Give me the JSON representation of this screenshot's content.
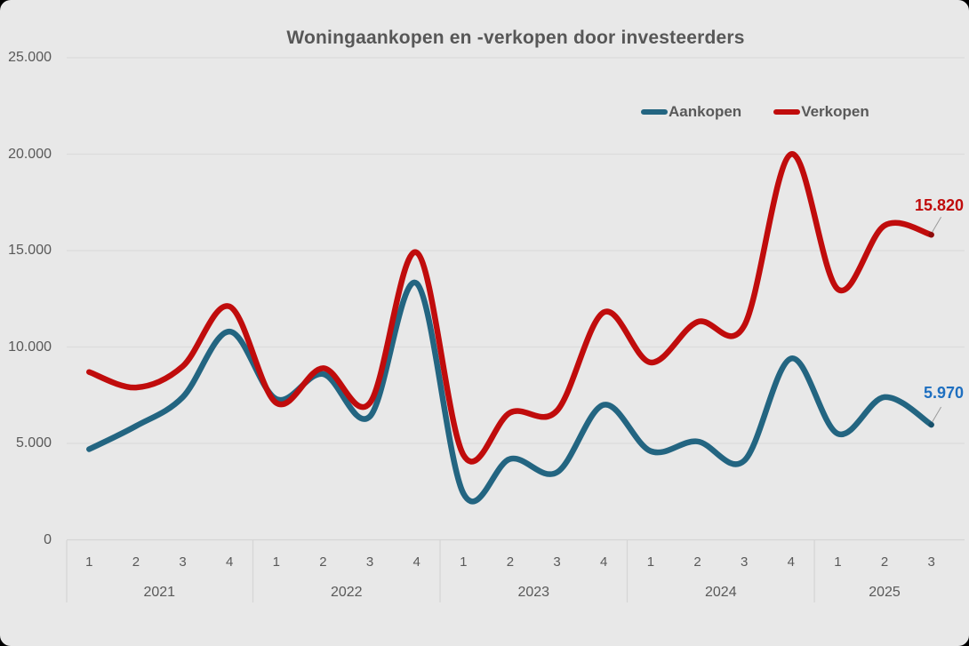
{
  "title": "Woningaankopen  en -verkopen door investeerders",
  "legend": {
    "items": [
      {
        "label": "Aankopen",
        "color": "#236581"
      },
      {
        "label": "Verkopen",
        "color": "#c00c0c"
      }
    ]
  },
  "y_axis": {
    "tick_labels": [
      "0",
      "5.000",
      "10.000",
      "15.000",
      "20.000",
      "25.000"
    ]
  },
  "x_axis": {
    "year_groups": [
      {
        "year": "2021",
        "quarters": [
          "1",
          "2",
          "3",
          "4"
        ]
      },
      {
        "year": "2022",
        "quarters": [
          "1",
          "2",
          "3",
          "4"
        ]
      },
      {
        "year": "2023",
        "quarters": [
          "1",
          "2",
          "3",
          "4"
        ]
      },
      {
        "year": "2024",
        "quarters": [
          "1",
          "2",
          "3",
          "4"
        ]
      },
      {
        "year": "2025",
        "quarters": [
          "1",
          "2",
          "3"
        ]
      }
    ]
  },
  "colors": {
    "background": "#e8e8e8",
    "grid": "#dcdcdc",
    "axis": "#d5d5d5",
    "text": "#595959",
    "leader_line": "#9a9a9a",
    "aankopen_line": "#236581",
    "aankopen_dot": "#17506b",
    "aankopen_label": "#1e6fc0",
    "verkopen_line": "#c00c0c",
    "verkopen_dot": "#8d0b0b",
    "verkopen_label": "#c00c0c"
  },
  "chart_data": {
    "type": "line",
    "title": "Woningaankopen  en -verkopen door investeerders",
    "categories": [
      "2021 Q1",
      "2021 Q2",
      "2021 Q3",
      "2021 Q4",
      "2022 Q1",
      "2022 Q2",
      "2022 Q3",
      "2022 Q4",
      "2023 Q1",
      "2023 Q2",
      "2023 Q3",
      "2023 Q4",
      "2024 Q1",
      "2024 Q2",
      "2024 Q3",
      "2024 Q4",
      "2025 Q1",
      "2025 Q2",
      "2025 Q3"
    ],
    "series": [
      {
        "name": "Aankopen",
        "color": "#236581",
        "values": [
          4700,
          5900,
          7400,
          10800,
          7300,
          8600,
          6400,
          13300,
          2400,
          4200,
          3500,
          7000,
          4600,
          5100,
          4100,
          9400,
          5500,
          7400,
          5970
        ],
        "end_label": "5.970"
      },
      {
        "name": "Verkopen",
        "color": "#c00c0c",
        "values": [
          8700,
          7900,
          9000,
          12100,
          7100,
          8900,
          7100,
          14900,
          4400,
          6600,
          6700,
          11800,
          9200,
          11300,
          11100,
          20000,
          13000,
          16300,
          15820
        ],
        "end_label": "15.820"
      }
    ],
    "xlabel": "",
    "ylabel": "",
    "ylim": [
      0,
      25000
    ],
    "y_ticks": [
      0,
      5000,
      10000,
      15000,
      20000,
      25000
    ],
    "grid": true,
    "legend_position": "top-right",
    "smoothed": true
  }
}
